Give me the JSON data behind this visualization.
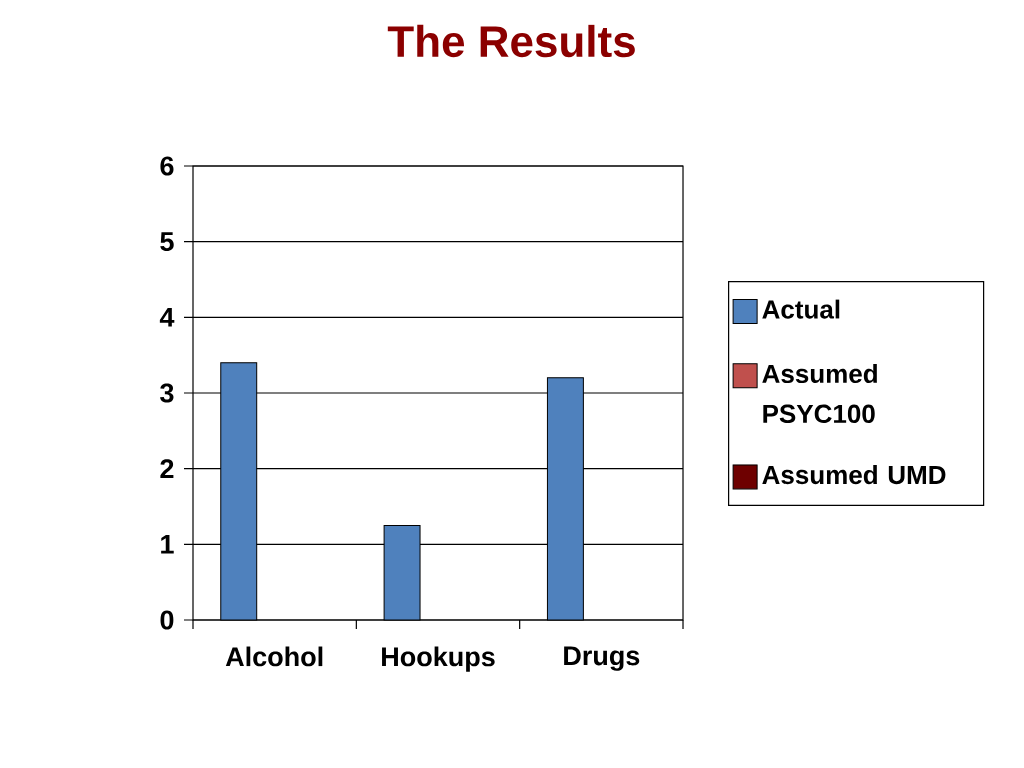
{
  "chart_data": {
    "type": "bar",
    "title": "The Results",
    "categories": [
      "Alcohol",
      "Hookups",
      "Drugs"
    ],
    "series": [
      {
        "name": "Actual",
        "color": "#4f81bd",
        "values": [
          3.4,
          1.25,
          3.2
        ]
      },
      {
        "name": "Assumed PSYC100",
        "color": "#c0504d",
        "values": [
          null,
          null,
          null
        ]
      },
      {
        "name": "Assumed UMD",
        "color": "#6e0000",
        "values": [
          null,
          null,
          null
        ]
      }
    ],
    "ylim": [
      0,
      6
    ],
    "yticks": [
      0,
      1,
      2,
      3,
      4,
      5,
      6
    ],
    "grid": "y",
    "legend": "right"
  }
}
